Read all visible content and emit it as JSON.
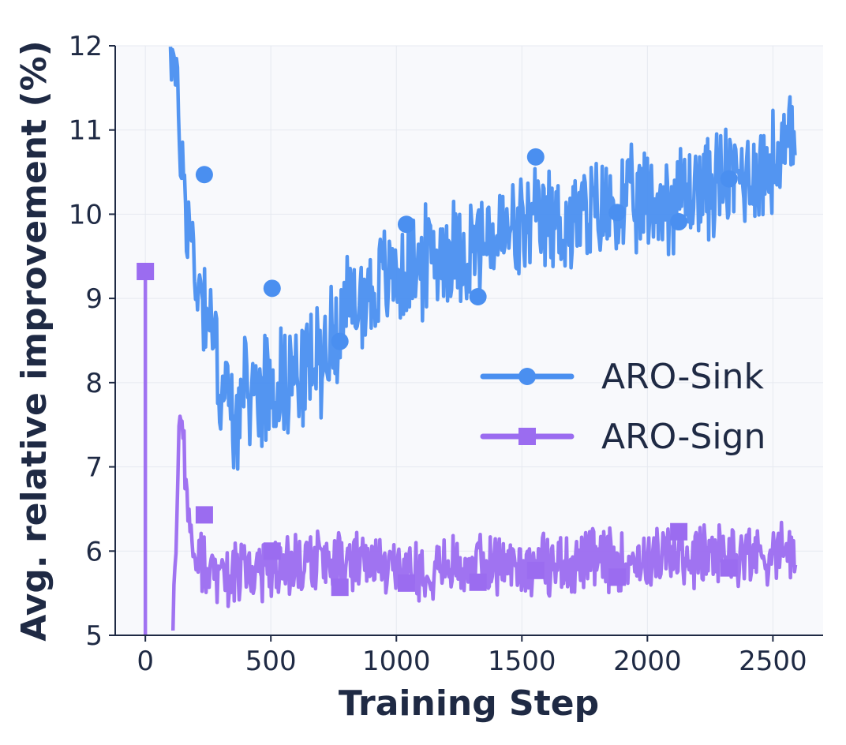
{
  "chart_data": {
    "type": "line",
    "xlabel": "Training Step",
    "ylabel": "Avg. relative improvement (%)",
    "xlim": [
      -120,
      2700
    ],
    "ylim": [
      5,
      12
    ],
    "xticks": [
      0,
      500,
      1000,
      1500,
      2000,
      2500
    ],
    "yticks": [
      5,
      6,
      7,
      8,
      9,
      10,
      11,
      12
    ],
    "xtick_labels": [
      "0",
      "500",
      "1000",
      "1500",
      "2000",
      "2500"
    ],
    "ytick_labels": [
      "5",
      "6",
      "7",
      "8",
      "9",
      "10",
      "11",
      "12"
    ],
    "grid": true,
    "legend_position": "center-right",
    "series": [
      {
        "name": "ARO-Sink",
        "color": "#4a8ff0",
        "marker": "circle",
        "noise": 0.75,
        "trend_x": [
          100,
          160,
          200,
          250,
          300,
          350,
          420,
          500,
          600,
          700,
          780,
          900,
          1000,
          1100,
          1200,
          1300,
          1400,
          1500,
          1600,
          1700,
          1800,
          1900,
          2000,
          2100,
          2200,
          2300,
          2400,
          2500,
          2590
        ],
        "trend_y": [
          12.2,
          10.2,
          9.3,
          8.9,
          8.0,
          7.6,
          7.9,
          8.0,
          8.1,
          8.3,
          8.8,
          9.1,
          9.3,
          9.4,
          9.6,
          9.6,
          9.7,
          9.8,
          9.9,
          9.9,
          10.0,
          10.1,
          10.1,
          10.2,
          10.3,
          10.4,
          10.5,
          10.6,
          10.8
        ],
        "marker_x": [
          235,
          505,
          775,
          1040,
          1325,
          1555,
          1880,
          2125,
          2325
        ],
        "marker_y": [
          10.47,
          9.12,
          8.49,
          9.88,
          9.02,
          10.68,
          10.02,
          9.91,
          10.42
        ]
      },
      {
        "name": "ARO-Sign",
        "color": "#9b6cf0",
        "marker": "square",
        "noise": 0.42,
        "trend_x": [
          110,
          140,
          170,
          200,
          250,
          300,
          400,
          500,
          700,
          1000,
          1300,
          1600,
          1900,
          2200,
          2590
        ],
        "trend_y": [
          5.05,
          7.7,
          6.6,
          6.0,
          5.75,
          5.7,
          5.75,
          5.8,
          5.85,
          5.8,
          5.85,
          5.85,
          5.9,
          5.95,
          6.0
        ],
        "marker_x": [
          0,
          235,
          505,
          775,
          1040,
          1325,
          1555,
          1880,
          2125,
          2325
        ],
        "marker_y": [
          9.32,
          6.43,
          6.0,
          5.57,
          5.62,
          5.63,
          5.77,
          5.69,
          6.23,
          5.8
        ]
      }
    ]
  }
}
